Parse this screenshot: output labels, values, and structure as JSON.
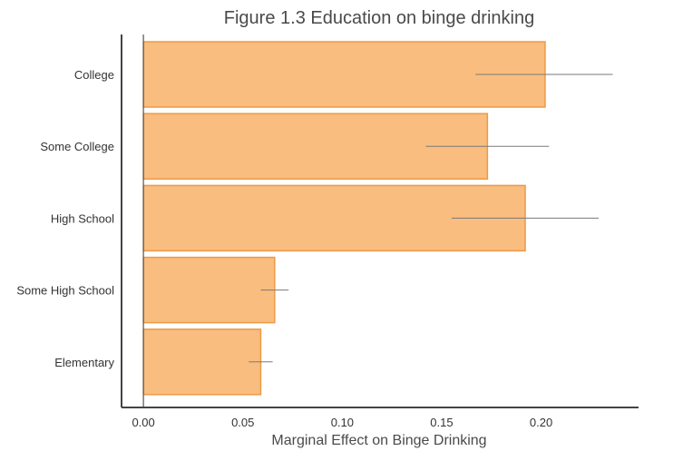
{
  "chart_data": {
    "type": "bar",
    "orientation": "horizontal",
    "title": "Figure 1.3  Education on binge drinking",
    "xlabel": "Marginal Effect on Binge Drinking",
    "ylabel": "",
    "categories": [
      "College",
      "Some College",
      "High School",
      "Some High School",
      "Elementary"
    ],
    "values": [
      0.202,
      0.173,
      0.192,
      0.066,
      0.059
    ],
    "error_bars": [
      {
        "low": 0.167,
        "high": 0.236
      },
      {
        "low": 0.142,
        "high": 0.204
      },
      {
        "low": 0.155,
        "high": 0.229
      },
      {
        "low": 0.059,
        "high": 0.073
      },
      {
        "low": 0.053,
        "high": 0.065
      }
    ],
    "xlim": [
      -0.011,
      0.249
    ],
    "xticks": [
      0.0,
      0.05,
      0.1,
      0.15,
      0.2
    ],
    "xtick_labels": [
      "0.00",
      "0.05",
      "0.10",
      "0.15",
      "0.20"
    ],
    "grid": false,
    "legend": "none",
    "colors": {
      "bar_fill": "#f8bd7f",
      "bar_stroke": "#ed9a45",
      "error_bar": "#7a7a7a",
      "axis": "#444444",
      "zero_line": "#555555"
    }
  }
}
